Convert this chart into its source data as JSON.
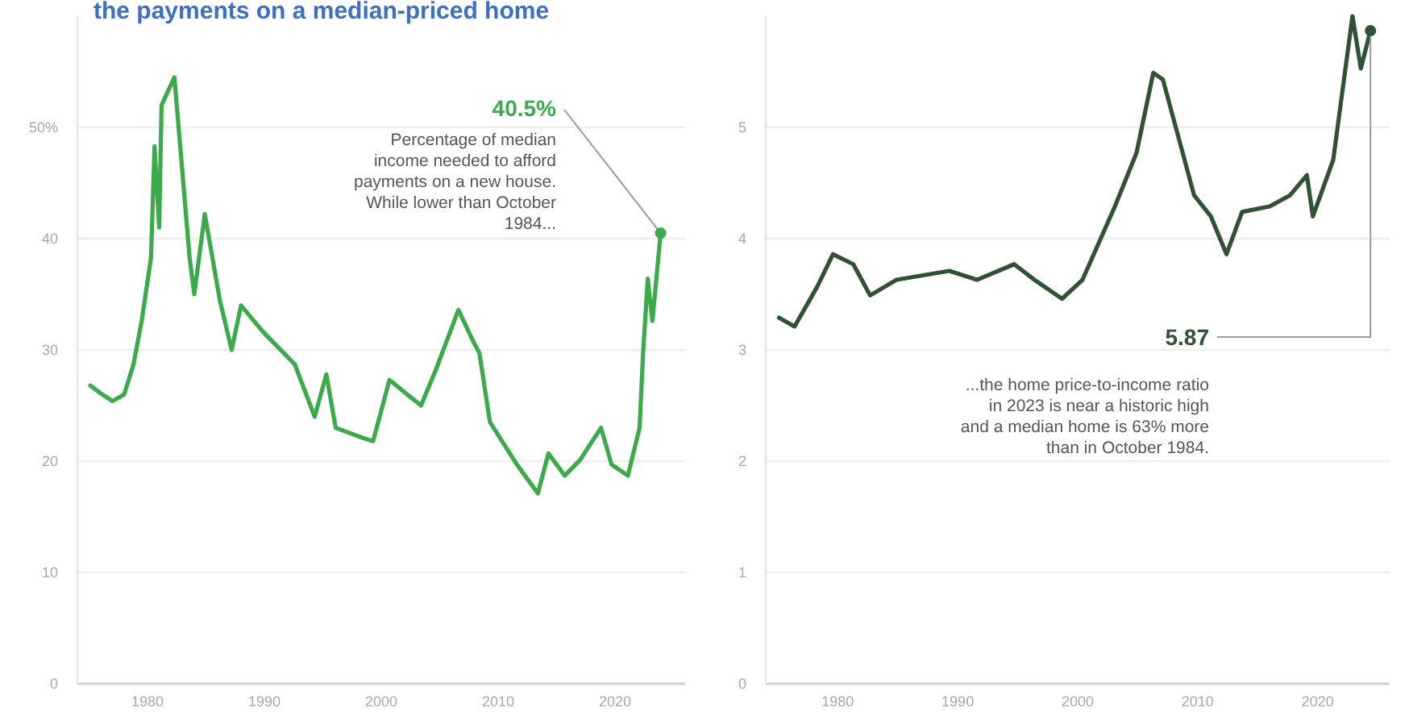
{
  "chart_data": [
    {
      "type": "line",
      "title": "the payments on a median-priced home",
      "x": [
        1975.1,
        1976,
        1977,
        1978,
        1978.8,
        1979.5,
        1980.3,
        1980.6,
        1981,
        1981.2,
        1982.3,
        1983.6,
        1984,
        1984.9,
        1986.2,
        1987.2,
        1988,
        1989.9,
        1992.6,
        1994.3,
        1995.3,
        1996.1,
        1998.4,
        1999.3,
        2000.7,
        2003.4,
        2004.7,
        2006.6,
        2007.9,
        2008.4,
        2009.3,
        2011.6,
        2013.4,
        2014.3,
        2015.7,
        2017,
        2018.8,
        2019.7,
        2021.1,
        2022.1,
        2022.4,
        2022.8,
        2023.2,
        2023.9
      ],
      "series": [
        {
          "color": "#3aaa4a",
          "values": [
            26.8,
            26.1,
            25.4,
            26,
            28.7,
            32.6,
            38.3,
            48.3,
            41,
            52,
            54.5,
            38.3,
            35,
            42.2,
            34.4,
            30,
            34,
            31.6,
            28.7,
            24,
            27.8,
            23,
            22.1,
            21.8,
            27.3,
            25,
            28.3,
            33.6,
            30.7,
            29.7,
            23.5,
            19.7,
            17.1,
            20.7,
            18.7,
            20.1,
            23,
            19.7,
            18.7,
            23,
            29.7,
            36.4,
            32.6,
            40.5
          ]
        }
      ],
      "xlim": [
        1974,
        2026
      ],
      "xticks": [
        1980,
        1990,
        2000,
        2010,
        2020
      ],
      "ylim": [
        0,
        60
      ],
      "yticks": [
        0,
        10,
        20,
        30,
        40,
        {
          "value": 50,
          "label": "50%"
        }
      ],
      "grid": "y",
      "annotations": [
        {
          "text": "40.5%",
          "x": 2023.9,
          "y": 40.5
        },
        "Percentage of median\nincome needed to afford\npayments on a new house.\nWhile lower than October\n1984..."
      ]
    },
    {
      "type": "line",
      "x": [
        1975.1,
        1976.4,
        1978.3,
        1979.6,
        1981.3,
        1982.7,
        1984.9,
        1987.1,
        1989.3,
        1991.6,
        1994.7,
        1996.4,
        1998.7,
        2000.4,
        2003.1,
        2004.9,
        2006.3,
        2007.1,
        2008.4,
        2009.7,
        2011.1,
        2012.4,
        2013.7,
        2016,
        2017.7,
        2019.1,
        2019.6,
        2021.3,
        2022.9,
        2023.6,
        2024.4
      ],
      "series": [
        {
          "color": "#2f5233",
          "values": [
            3.29,
            3.21,
            3.57,
            3.86,
            3.77,
            3.49,
            3.63,
            3.67,
            3.71,
            3.63,
            3.77,
            3.63,
            3.46,
            3.63,
            4.29,
            4.77,
            5.49,
            5.43,
            4.91,
            4.39,
            4.2,
            3.86,
            4.24,
            4.29,
            4.39,
            4.57,
            4.2,
            4.71,
            6.0,
            5.53,
            5.87
          ]
        }
      ],
      "xlim": [
        1974,
        2026
      ],
      "xticks": [
        1980,
        1990,
        2000,
        2010,
        2020
      ],
      "ylim": [
        0,
        6
      ],
      "yticks": [
        0,
        1,
        2,
        3,
        4,
        5
      ],
      "grid": "y",
      "annotations": [
        {
          "text": "5.87",
          "x": 2024.4,
          "y": 5.87
        },
        "...the home price-to-income ratio\nin 2023 is near a historic high\nand a median home is 63% more\nthan in October 1984."
      ]
    }
  ]
}
